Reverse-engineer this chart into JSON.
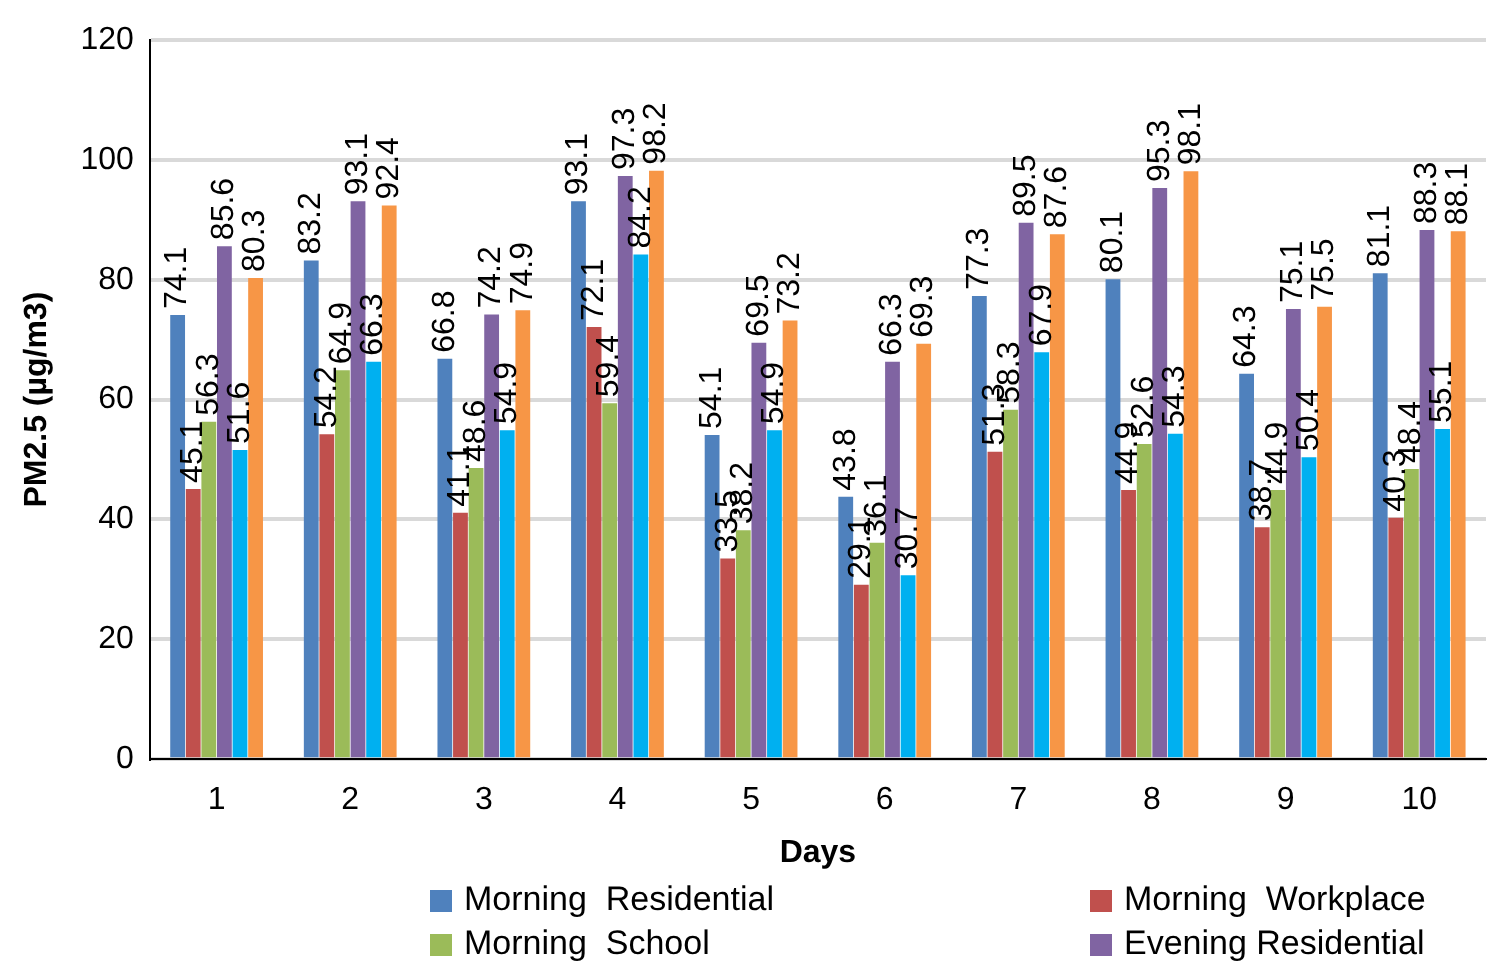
{
  "chart_data": {
    "type": "bar",
    "xlabel": "Days",
    "ylabel": "PM2.5 (µg/m3)",
    "categories": [
      "1",
      "2",
      "3",
      "4",
      "5",
      "6",
      "7",
      "8",
      "9",
      "10"
    ],
    "ylim": [
      0,
      120
    ],
    "yticks": [
      0,
      20,
      40,
      60,
      80,
      100,
      120
    ],
    "grid": "y",
    "legend": "bottom",
    "data_labels": true,
    "series": [
      {
        "name": "Morning  Residential",
        "color": "#4f81bd",
        "values": [
          74.1,
          83.2,
          66.8,
          93.1,
          54.1,
          43.8,
          77.3,
          80.1,
          64.3,
          81.1
        ]
      },
      {
        "name": "Morning  Workplace",
        "color": "#c0504d",
        "values": [
          45.1,
          54.2,
          41.1,
          72.1,
          33.5,
          29.1,
          51.3,
          44.9,
          38.7,
          40.3
        ]
      },
      {
        "name": "Morning  School",
        "color": "#9bbb59",
        "values": [
          56.3,
          64.9,
          48.6,
          59.4,
          38.2,
          36.1,
          58.3,
          52.6,
          44.9,
          48.4
        ]
      },
      {
        "name": "Evening Residential",
        "color": "#8064a2",
        "values": [
          85.6,
          93.1,
          74.2,
          97.3,
          69.5,
          66.3,
          89.5,
          95.3,
          75.1,
          88.3
        ]
      },
      {
        "color": "#00b0f0",
        "values": [
          51.6,
          66.3,
          54.9,
          84.2,
          54.9,
          30.7,
          67.9,
          54.3,
          50.4,
          55.1
        ]
      },
      {
        "color": "#f79646",
        "values": [
          80.3,
          92.4,
          74.9,
          98.2,
          73.2,
          69.3,
          87.6,
          98.1,
          75.5,
          88.1
        ]
      }
    ]
  }
}
